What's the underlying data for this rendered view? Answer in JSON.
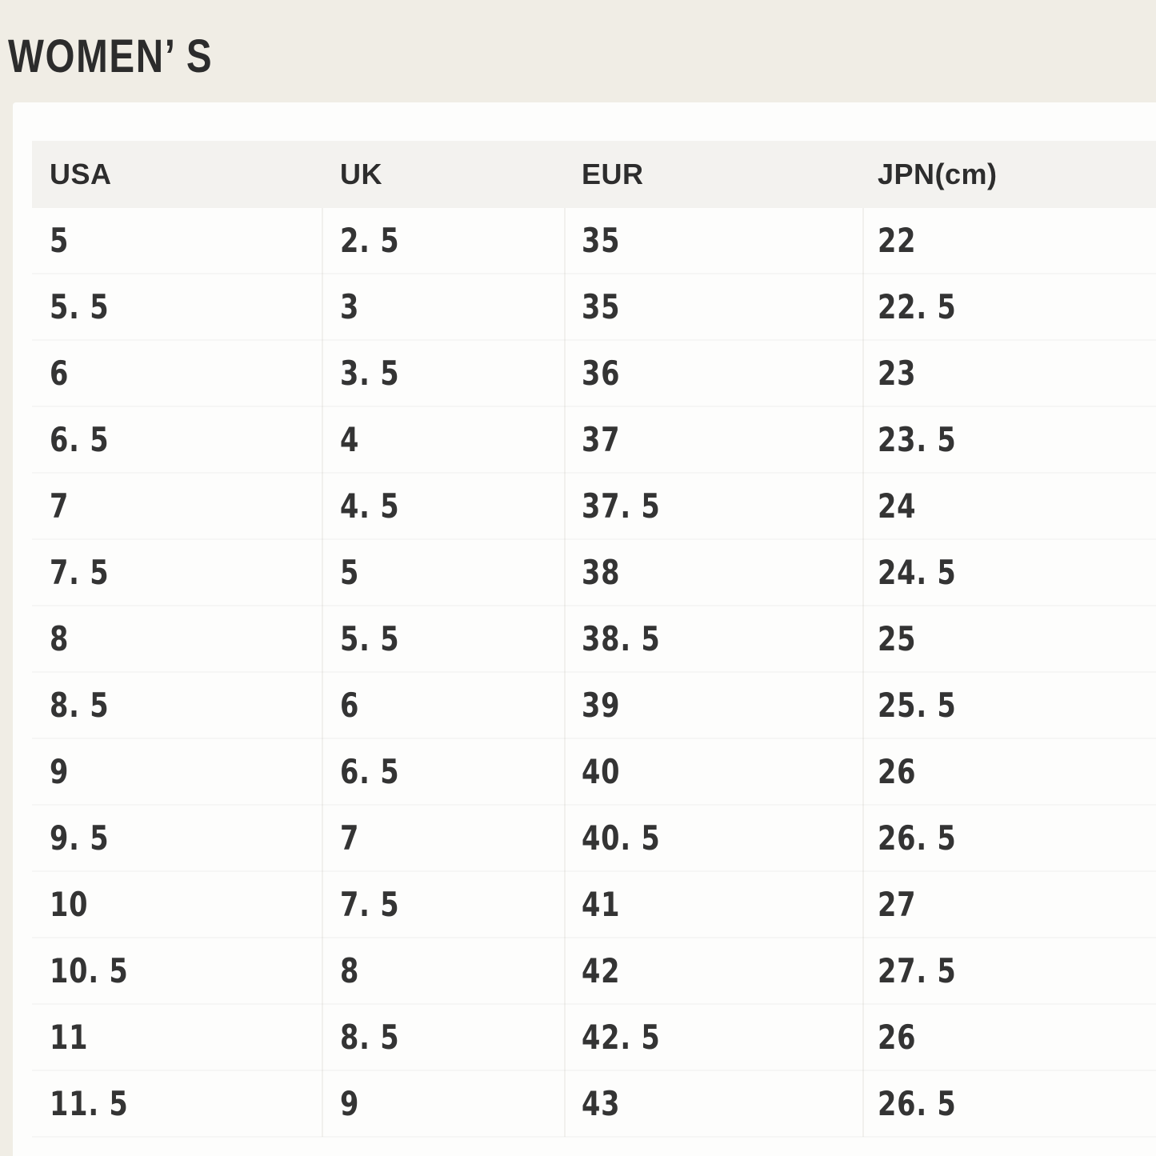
{
  "page": {
    "title": "WOMEN’ S",
    "colors": {
      "background": "#f0ede5",
      "card": "#fdfdfc",
      "header_row": "#f3f2ef",
      "heading_text": "#2c2c2c",
      "cell_text": "#343434"
    }
  },
  "table": {
    "headers": [
      "USA",
      "UK",
      "EUR",
      "JPN(cm)"
    ],
    "rows": [
      [
        "5",
        "2. 5",
        "35",
        "22"
      ],
      [
        "5. 5",
        "3",
        "35",
        "22. 5"
      ],
      [
        "6",
        "3. 5",
        "36",
        "23"
      ],
      [
        "6. 5",
        "4",
        "37",
        "23. 5"
      ],
      [
        "7",
        "4. 5",
        "37. 5",
        "24"
      ],
      [
        "7. 5",
        "5",
        "38",
        "24. 5"
      ],
      [
        "8",
        "5. 5",
        "38. 5",
        "25"
      ],
      [
        "8. 5",
        "6",
        "39",
        "25. 5"
      ],
      [
        "9",
        "6. 5",
        "40",
        "26"
      ],
      [
        "9. 5",
        "7",
        "40. 5",
        "26. 5"
      ],
      [
        "10",
        "7. 5",
        "41",
        "27"
      ],
      [
        "10. 5",
        "8",
        "42",
        "27. 5"
      ],
      [
        "11",
        "8. 5",
        "42. 5",
        "26"
      ],
      [
        "11. 5",
        "9",
        "43",
        "26. 5"
      ]
    ]
  }
}
